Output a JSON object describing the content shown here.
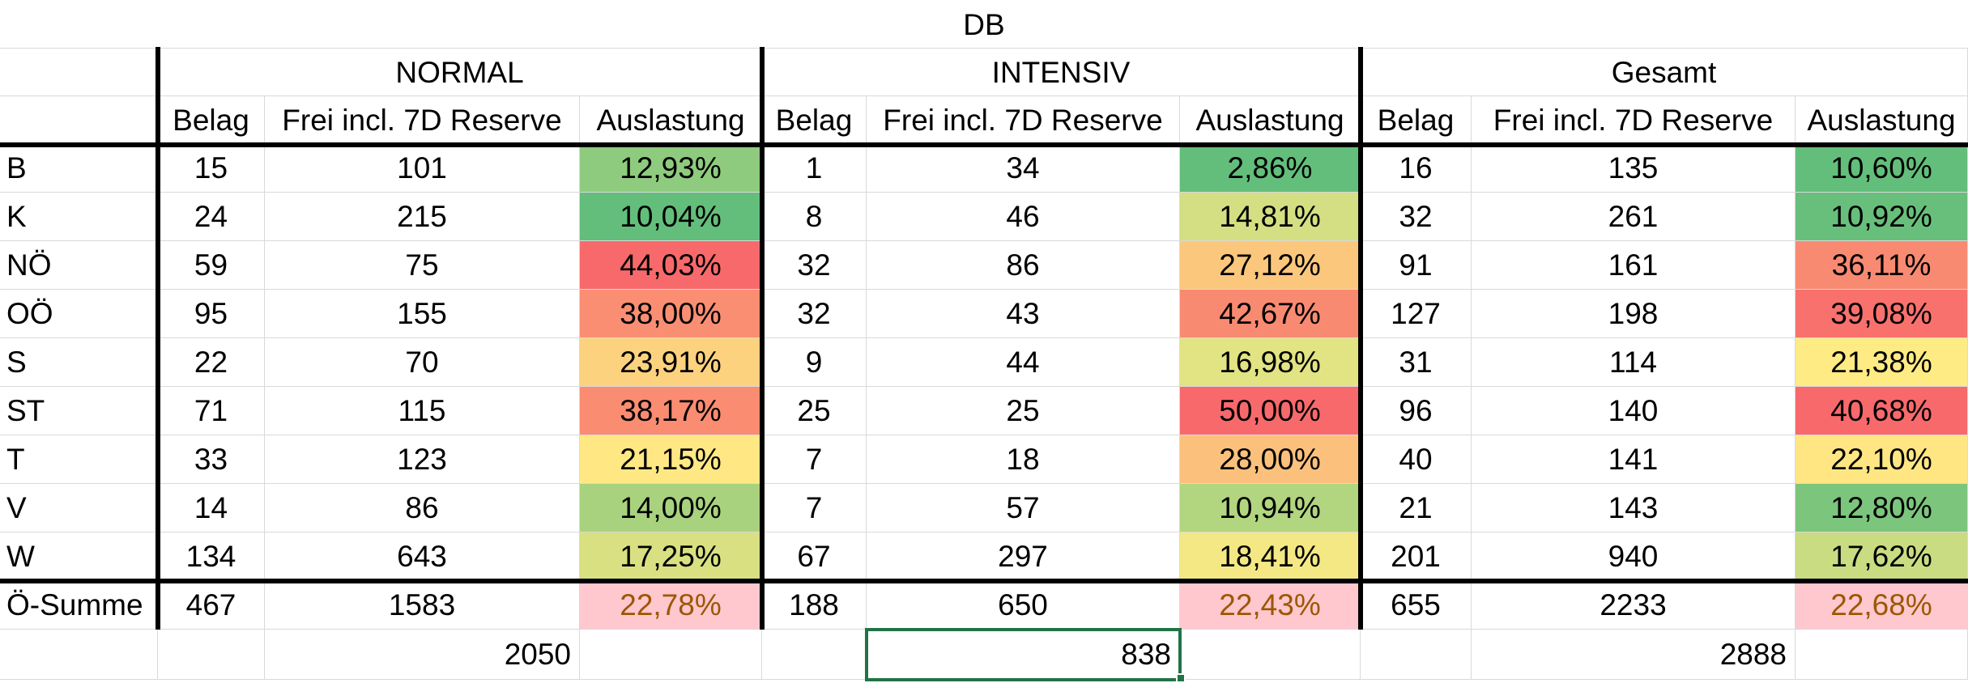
{
  "sheet": {
    "title": "DB",
    "groups": [
      "NORMAL",
      "INTENSIV",
      "Gesamt"
    ],
    "subheaders": [
      "Belag",
      "Frei incl. 7D Reserve",
      "Auslastung"
    ],
    "rows": [
      {
        "label": "B",
        "cells": [
          "15",
          "101",
          "12,93%",
          "1",
          "34",
          "2,86%",
          "16",
          "135",
          "10,60%"
        ],
        "fill": [
          "#8FCB7E",
          "#63BE7B",
          "#63BE7B"
        ]
      },
      {
        "label": "K",
        "cells": [
          "24",
          "215",
          "10,04%",
          "8",
          "46",
          "14,81%",
          "32",
          "261",
          "10,92%"
        ],
        "fill": [
          "#63BE7B",
          "#D3DF82",
          "#68BF7B"
        ]
      },
      {
        "label": "NÖ",
        "cells": [
          "59",
          "75",
          "44,03%",
          "32",
          "86",
          "27,12%",
          "91",
          "161",
          "36,11%"
        ],
        "fill": [
          "#F8696B",
          "#FBC77D",
          "#F98A72"
        ]
      },
      {
        "label": "OÖ",
        "cells": [
          "95",
          "155",
          "38,00%",
          "32",
          "43",
          "42,67%",
          "127",
          "198",
          "39,08%"
        ],
        "fill": [
          "#FA8E73",
          "#F98A72",
          "#F8716D"
        ]
      },
      {
        "label": "S",
        "cells": [
          "22",
          "70",
          "23,91%",
          "9",
          "44",
          "16,98%",
          "31",
          "114",
          "21,38%"
        ],
        "fill": [
          "#FDD27F",
          "#E2E383",
          "#FFEB84"
        ]
      },
      {
        "label": "ST",
        "cells": [
          "71",
          "115",
          "38,17%",
          "25",
          "25",
          "50,00%",
          "96",
          "140",
          "40,68%"
        ],
        "fill": [
          "#FA8C72",
          "#F8696B",
          "#F8696B"
        ]
      },
      {
        "label": "T",
        "cells": [
          "33",
          "123",
          "21,15%",
          "7",
          "18",
          "28,00%",
          "40",
          "141",
          "22,10%"
        ],
        "fill": [
          "#FFE884",
          "#FBC17C",
          "#FFE683"
        ]
      },
      {
        "label": "V",
        "cells": [
          "14",
          "86",
          "14,00%",
          "7",
          "57",
          "10,94%",
          "21",
          "143",
          "12,80%"
        ],
        "fill": [
          "#A9D27F",
          "#B2D580",
          "#7CC57D"
        ]
      },
      {
        "label": "W",
        "cells": [
          "134",
          "643",
          "17,25%",
          "67",
          "297",
          "18,41%",
          "201",
          "940",
          "17,62%"
        ],
        "fill": [
          "#D8E082",
          "#F3E884",
          "#CADC81"
        ]
      }
    ],
    "sum_row": {
      "label": "Ö-Summe",
      "cells": [
        "467",
        "1583",
        "22,78%",
        "188",
        "650",
        "22,43%",
        "655",
        "2233",
        "22,68%"
      ],
      "fill": "#FFC7CE",
      "text_color": "#9C5700"
    },
    "totals": [
      "2050",
      "838",
      "2888"
    ],
    "selection_border_color": "#217346"
  }
}
